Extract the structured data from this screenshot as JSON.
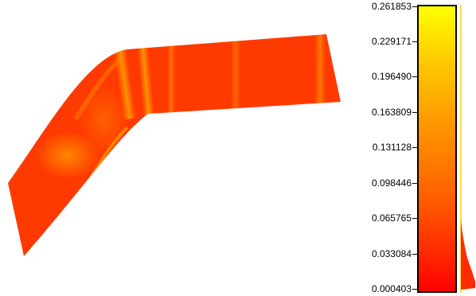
{
  "colorbar": {
    "ticks": [
      "0.261853",
      "0.229171",
      "0.196490",
      "0.163809",
      "0.131128",
      "0.098446",
      "0.065765",
      "0.033084",
      "0.000403"
    ],
    "min": 0.000403,
    "max": 0.261853,
    "colors": {
      "high": "#ffff00",
      "mid": "#ff9600",
      "low": "#ff0000",
      "border": "#000000"
    }
  },
  "mesh": {
    "base_color": "#ff3c00",
    "highlight_color": "#ffa000"
  }
}
